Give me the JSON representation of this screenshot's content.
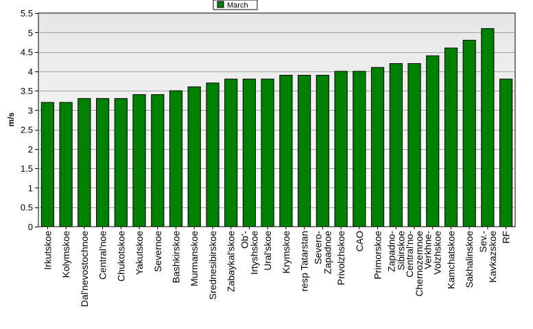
{
  "chart_data": {
    "type": "bar",
    "ylabel": "m/s",
    "ylim": [
      0,
      5.5
    ],
    "ytick_step": 0.5,
    "grid": true,
    "legend_position": "top-center",
    "series": [
      {
        "name": "March",
        "color": "#008000",
        "values": [
          3.2,
          3.2,
          3.3,
          3.3,
          3.3,
          3.4,
          3.4,
          3.5,
          3.6,
          3.7,
          3.8,
          3.8,
          3.8,
          3.9,
          3.9,
          3.9,
          4.0,
          4.0,
          4.1,
          4.2,
          4.2,
          4.4,
          4.6,
          4.8,
          5.1,
          3.8
        ]
      }
    ],
    "categories": [
      [
        "Irkutskoe"
      ],
      [
        "Kolymskoe"
      ],
      [
        "Dal'nevostochnoe"
      ],
      [
        "Central'noe"
      ],
      [
        "Chukotskoe"
      ],
      [
        "Yakutskoe"
      ],
      [
        "Severnoe"
      ],
      [
        "Bashkirskoe"
      ],
      [
        "Murmanskoe"
      ],
      [
        "Srednesibirskoe"
      ],
      [
        "Zabaykal'skoe"
      ],
      [
        "Irtyshskoe",
        "Ob'-"
      ],
      [
        "Ural'skoe"
      ],
      [
        "Krymskoe"
      ],
      [
        "resp Tatarstan"
      ],
      [
        "Zapadnoe",
        "Severo-"
      ],
      [
        "Privolzhskoe"
      ],
      [
        "CAO"
      ],
      [
        "Primorskoe"
      ],
      [
        "Sibirskoe",
        "Zapadno-"
      ],
      [
        "Chernozemnoe",
        "Central'no-"
      ],
      [
        "Volzhskoe",
        "Verkhne-"
      ],
      [
        "Kamchatskoe"
      ],
      [
        "Sakhalinskoe"
      ],
      [
        "Kavkazskoe",
        "Sev.-"
      ],
      [
        "RF"
      ]
    ]
  }
}
